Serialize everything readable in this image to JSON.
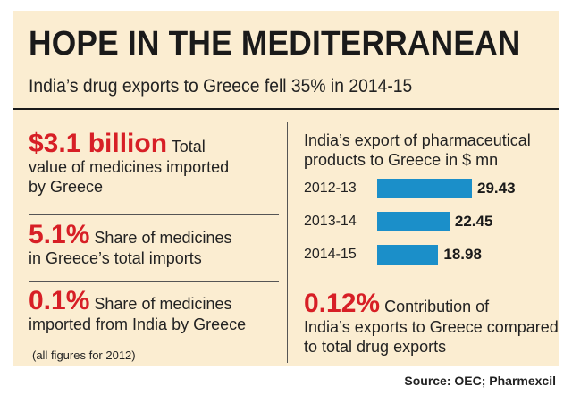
{
  "headline": "HOPE IN THE MEDITERRANEAN",
  "subhead": "India’s drug exports to Greece fell 35% in 2014-15",
  "stats": [
    {
      "big": "$3.1 billion",
      "first": "Total",
      "rest": "value of medicines imported by Greece"
    },
    {
      "big": "5.1%",
      "first": "Share of medicines",
      "rest": "in Greece’s total imports"
    },
    {
      "big": "0.1%",
      "first": "Share of medicines",
      "rest": "imported from India by Greece"
    }
  ],
  "note": "(all figures for 2012)",
  "chart_data": {
    "type": "bar",
    "orientation": "horizontal",
    "title": "India’s export of pharmaceutical products to Greece in $ mn",
    "categories": [
      "2012-13",
      "2013-14",
      "2014-15"
    ],
    "values": [
      29.43,
      22.45,
      18.98
    ],
    "value_labels": [
      "29.43",
      "22.45",
      "18.98"
    ],
    "bar_color": "#1b8fc9"
  },
  "contribution": {
    "big": "0.12%",
    "first": "Contribution of",
    "rest": "India’s exports to Greece compared to total drug exports"
  },
  "source": "Source: OEC; Pharmexcil",
  "colors": {
    "panel": "#fbedd1",
    "accent": "#d71f26",
    "bar": "#1b8fc9"
  }
}
